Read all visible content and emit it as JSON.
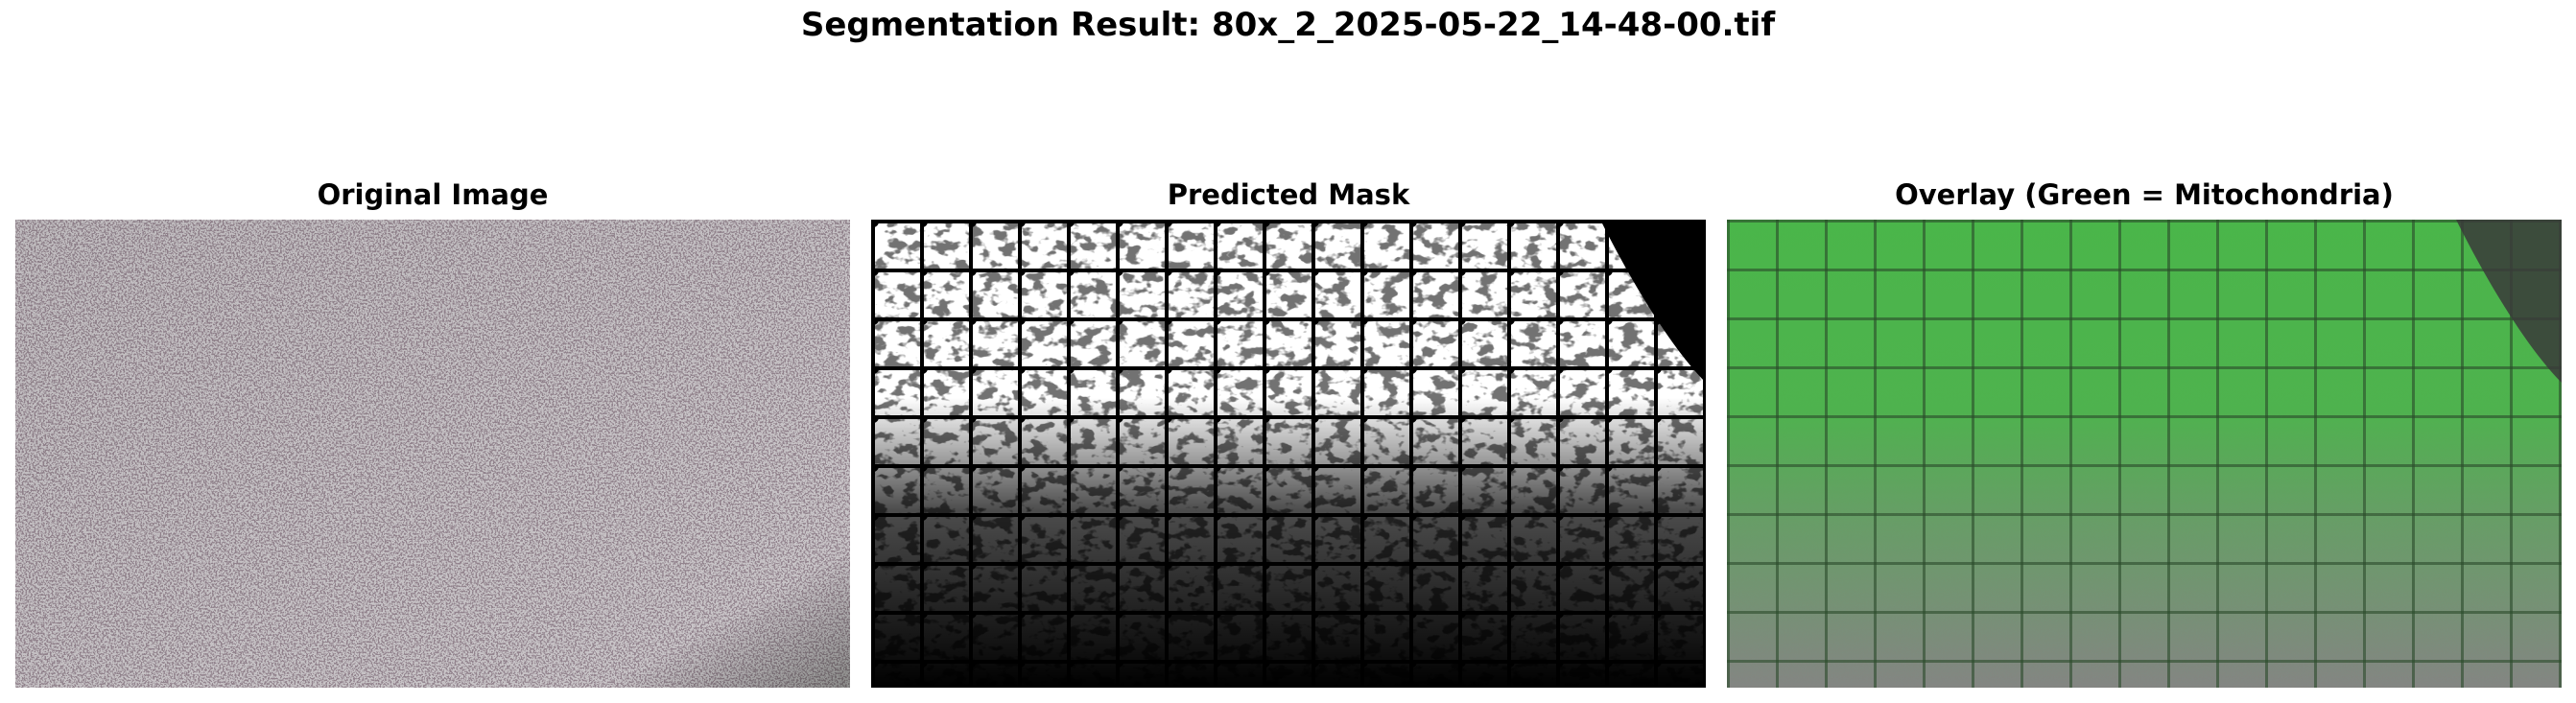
{
  "figure": {
    "title": "Segmentation Result: 80x_2_2025-05-22_14-48-00.tif"
  },
  "panels": [
    {
      "title": "Original Image",
      "content": "micrograph"
    },
    {
      "title": "Predicted Mask",
      "content": "binary-mask"
    },
    {
      "title": "Overlay (Green = Mitochondria)",
      "content": "overlay"
    }
  ],
  "colors": {
    "background": "#ffffff",
    "text": "#000000",
    "micrograph_light": "#c9c5c8",
    "micrograph_dark": "#4a3c44",
    "mask_foreground": "#ffffff",
    "mask_background": "#000000",
    "overlay_green": "#3fbf3f"
  }
}
